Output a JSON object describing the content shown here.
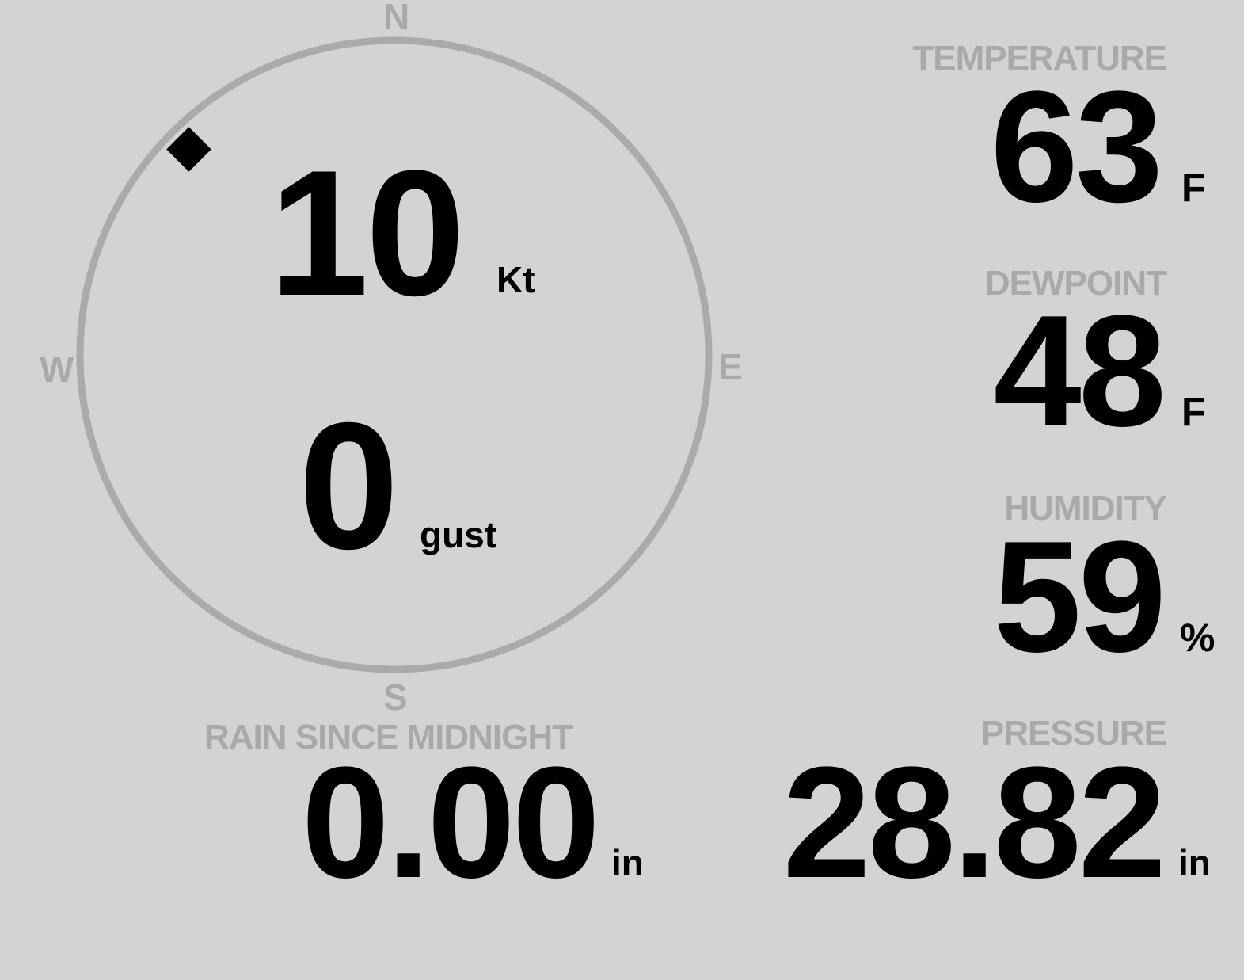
{
  "wind": {
    "cardinals": {
      "n": "N",
      "e": "E",
      "s": "S",
      "w": "W"
    },
    "direction_degrees": 315,
    "speed": "10",
    "speed_unit": "Kt",
    "gust": "0",
    "gust_label": "gust"
  },
  "temperature": {
    "label": "TEMPERATURE",
    "value": "63",
    "unit": "F"
  },
  "dewpoint": {
    "label": "DEWPOINT",
    "value": "48",
    "unit": "F"
  },
  "humidity": {
    "label": "HUMIDITY",
    "value": "59",
    "unit": "%"
  },
  "pressure": {
    "label": "PRESSURE",
    "value": "28.82",
    "unit": "in"
  },
  "rain": {
    "label": "RAIN SINCE MIDNIGHT",
    "value": "0.00",
    "unit": "in"
  },
  "colors": {
    "background": "#d3d3d3",
    "label": "#a9a9a9",
    "value": "#000000",
    "dial": "#aaaaaa"
  }
}
